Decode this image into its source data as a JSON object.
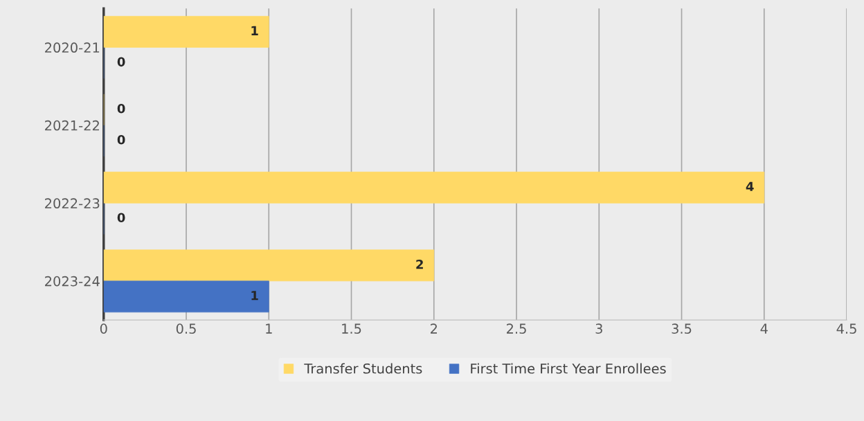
{
  "chart_data": {
    "type": "bar",
    "orientation": "horizontal",
    "categories": [
      "2020-21",
      "2021-22",
      "2022-23",
      "2023-24"
    ],
    "series": [
      {
        "name": "Transfer Students",
        "color": "#ffd966",
        "values": [
          1,
          0,
          4,
          2
        ]
      },
      {
        "name": "First Time First Year Enrollees",
        "color": "#4472c4",
        "values": [
          0,
          0,
          0,
          1
        ]
      }
    ],
    "xlim": [
      0,
      4.5
    ],
    "xticks": [
      0,
      0.5,
      1,
      1.5,
      2,
      2.5,
      3,
      3.5,
      4,
      4.5
    ],
    "grid": "x",
    "legend": "bottom",
    "data_labels": true
  }
}
